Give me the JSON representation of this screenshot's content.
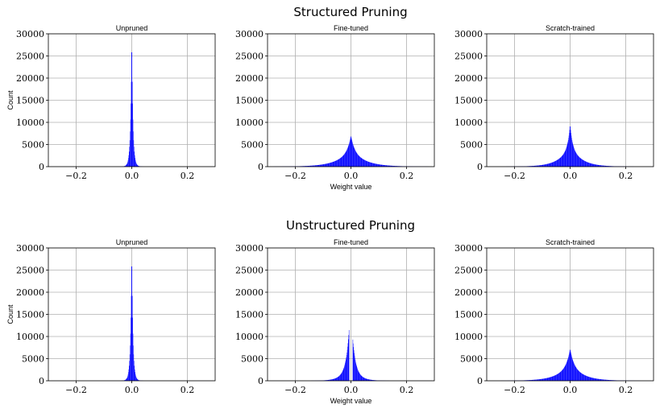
{
  "figure": {
    "row_titles": [
      "Structured Pruning",
      "Unstructured Pruning"
    ],
    "ylabel": "Count",
    "xlabel": "Weight value",
    "bar_color": "#0000ff",
    "grid_color": "#b0b0b0"
  },
  "chart_data": [
    {
      "type": "histogram",
      "row_title": "Structured Pruning",
      "title": "Unpruned",
      "ylabel": "Count",
      "xlabel": "",
      "ylim": [
        0,
        30000
      ],
      "xlim": [
        -0.3,
        0.3
      ],
      "xticks": [
        -0.2,
        0.0,
        0.2
      ],
      "yticks": [
        0,
        5000,
        10000,
        15000,
        20000,
        25000,
        30000
      ],
      "grid": true,
      "peak_count": 30000,
      "peak_width": 0.004,
      "spread": 0.008,
      "tail_weight": 0.08
    },
    {
      "type": "histogram",
      "row_title": "Structured Pruning",
      "title": "Fine-tuned",
      "ylabel": "",
      "xlabel": "Weight value",
      "ylim": [
        0,
        30000
      ],
      "xlim": [
        -0.3,
        0.3
      ],
      "xticks": [
        -0.2,
        0.0,
        0.2
      ],
      "yticks": [
        0,
        5000,
        10000,
        15000,
        20000,
        25000,
        30000
      ],
      "grid": true,
      "peak_count": 7000,
      "peak_width": 0.012,
      "spread": 0.05,
      "tail_weight": 0.55
    },
    {
      "type": "histogram",
      "row_title": "Structured Pruning",
      "title": "Scratch-trained",
      "ylabel": "",
      "xlabel": "",
      "ylim": [
        0,
        30000
      ],
      "xlim": [
        -0.3,
        0.3
      ],
      "xticks": [
        -0.2,
        0.0,
        0.2
      ],
      "yticks": [
        0,
        5000,
        10000,
        15000,
        20000,
        25000,
        30000
      ],
      "grid": true,
      "peak_count": 9500,
      "peak_width": 0.008,
      "spread": 0.04,
      "tail_weight": 0.5
    },
    {
      "type": "histogram",
      "row_title": "Unstructured Pruning",
      "title": "Unpruned",
      "ylabel": "Count",
      "xlabel": "",
      "ylim": [
        0,
        30000
      ],
      "xlim": [
        -0.3,
        0.3
      ],
      "xticks": [
        -0.2,
        0.0,
        0.2
      ],
      "yticks": [
        0,
        5000,
        10000,
        15000,
        20000,
        25000,
        30000
      ],
      "grid": true,
      "peak_count": 30000,
      "peak_width": 0.004,
      "spread": 0.008,
      "tail_weight": 0.08
    },
    {
      "type": "histogram",
      "row_title": "Unstructured Pruning",
      "title": "Fine-tuned",
      "ylabel": "",
      "xlabel": "Weight value",
      "ylim": [
        0,
        30000
      ],
      "xlim": [
        -0.3,
        0.3
      ],
      "xticks": [
        -0.2,
        0.0,
        0.2
      ],
      "yticks": [
        0,
        5000,
        10000,
        15000,
        20000,
        25000,
        30000
      ],
      "grid": true,
      "bimodal": true,
      "pruned_gap": [
        -0.006,
        0.006
      ],
      "left_peak_count": 12300,
      "right_peak_count": 10000,
      "peak_width": 0.01,
      "spread": 0.025,
      "tail_weight": 0.3
    },
    {
      "type": "histogram",
      "row_title": "Unstructured Pruning",
      "title": "Scratch-trained",
      "ylabel": "",
      "xlabel": "",
      "ylim": [
        0,
        30000
      ],
      "xlim": [
        -0.3,
        0.3
      ],
      "xticks": [
        -0.2,
        0.0,
        0.2
      ],
      "yticks": [
        0,
        5000,
        10000,
        15000,
        20000,
        25000,
        30000
      ],
      "grid": true,
      "peak_count": 7200,
      "peak_width": 0.012,
      "spread": 0.045,
      "tail_weight": 0.55
    }
  ]
}
